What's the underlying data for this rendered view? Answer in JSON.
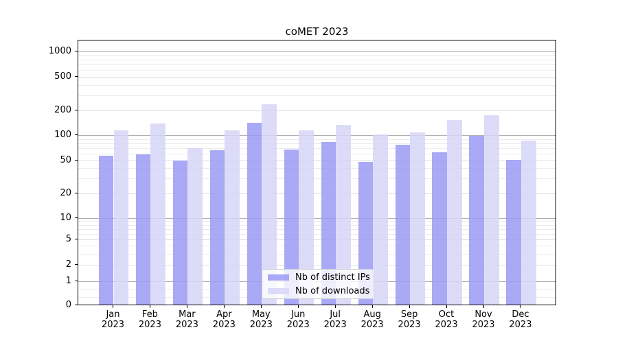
{
  "title": "coMET 2023",
  "colors": {
    "ips": "rgba(154,154,244,0.85)",
    "downloads": "rgba(214,214,248,0.85)",
    "major_gridline": "#b0b0b0",
    "minor_gridline": "#ececec",
    "axis": "#000000"
  },
  "legend": {
    "items": [
      {
        "label": "Nb of distinct IPs",
        "series_key": "ips"
      },
      {
        "label": "Nb of downloads",
        "series_key": "downloads"
      }
    ]
  },
  "y_axis": {
    "tick_labels": [
      "1000",
      "500",
      "200",
      "100",
      "50",
      "20",
      "10",
      "5",
      "2",
      "1",
      "0"
    ]
  },
  "chart_data": {
    "type": "bar",
    "title": "coMET 2023",
    "categories": [
      "Jan 2023",
      "Feb 2023",
      "Mar 2023",
      "Apr 2023",
      "May 2023",
      "Jun 2023",
      "Jul 2023",
      "Aug 2023",
      "Sep 2023",
      "Oct 2023",
      "Nov 2023",
      "Dec 2023"
    ],
    "series": [
      {
        "name": "Nb of distinct IPs",
        "values": [
          56,
          58,
          49,
          65,
          138,
          66,
          81,
          47,
          75,
          61,
          97,
          50
        ]
      },
      {
        "name": "Nb of downloads",
        "values": [
          112,
          135,
          68,
          112,
          230,
          112,
          130,
          100,
          105,
          150,
          172,
          84
        ]
      }
    ],
    "xlabel": "",
    "ylabel": "",
    "yscale": "symlog",
    "yticks": [
      0,
      1,
      2,
      5,
      10,
      20,
      50,
      100,
      200,
      500,
      1000
    ],
    "ylim": [
      0,
      1370
    ],
    "grid": true,
    "legend_position": "lower center"
  }
}
